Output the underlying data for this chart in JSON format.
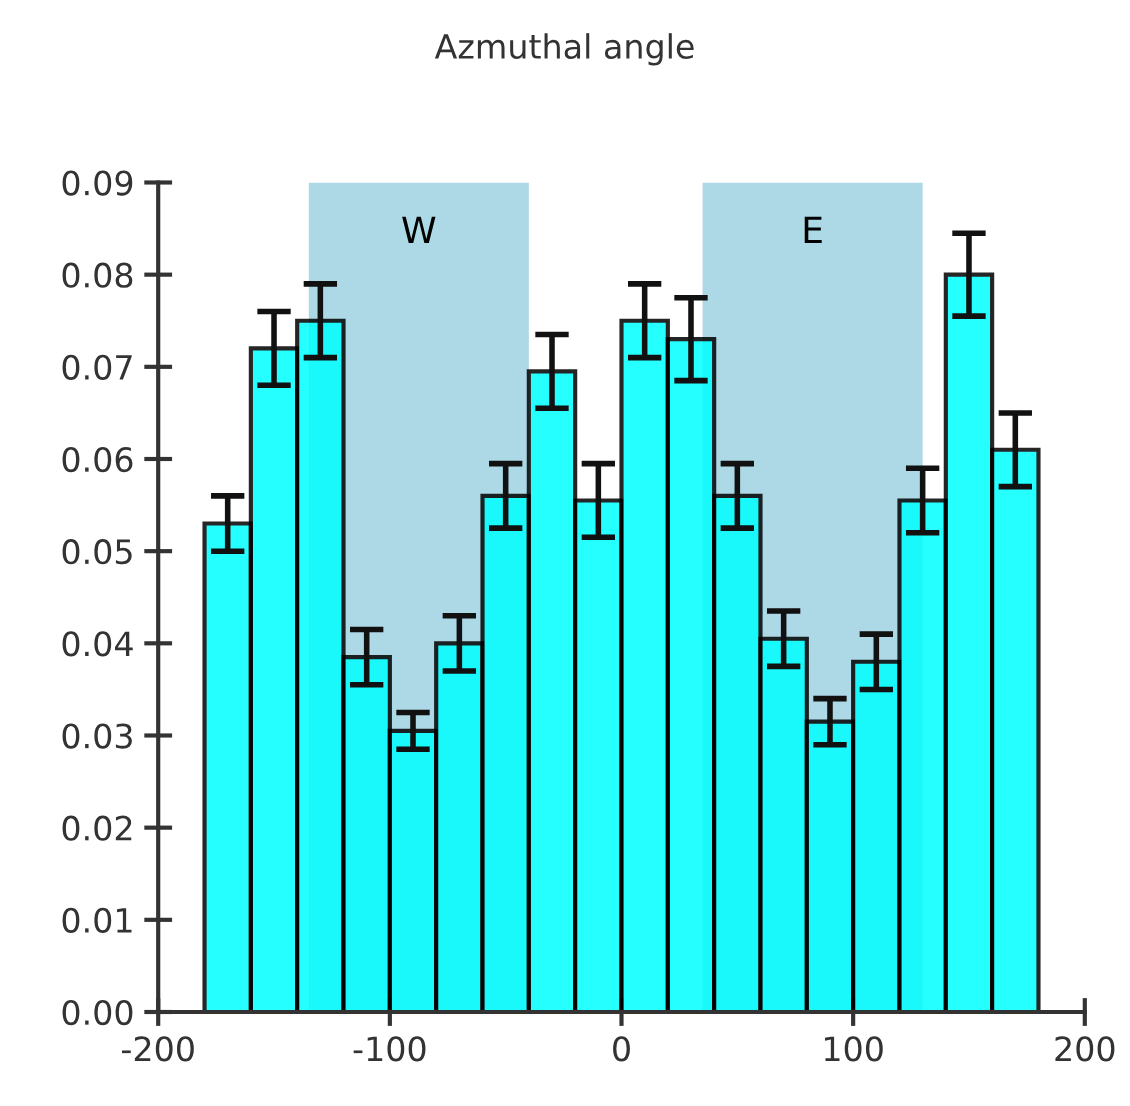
{
  "chart_data": {
    "type": "histogram",
    "title": "Azmuthal angle",
    "bins": [
      -180,
      -160,
      -140,
      -120,
      -100,
      -80,
      -60,
      -40,
      -20,
      0,
      20,
      40,
      60,
      80,
      100,
      120,
      140,
      160,
      180
    ],
    "values": [
      0.053,
      0.072,
      0.075,
      0.0385,
      0.0305,
      0.04,
      0.056,
      0.0695,
      0.0555,
      0.075,
      0.073,
      0.056,
      0.0405,
      0.0315,
      0.038,
      0.0555,
      0.08,
      0.061
    ],
    "errors": [
      0.003,
      0.004,
      0.004,
      0.003,
      0.002,
      0.003,
      0.0035,
      0.004,
      0.004,
      0.004,
      0.0045,
      0.0035,
      0.003,
      0.0025,
      0.003,
      0.0035,
      0.0045,
      0.004
    ],
    "color": "#00ffff",
    "bands": [
      {
        "axis": "x",
        "from": -135,
        "to": -40,
        "label": "W",
        "color": "#add8e6"
      },
      {
        "axis": "x",
        "from": 35,
        "to": 130,
        "label": "E",
        "color": "#add8e6"
      }
    ],
    "xlim": [
      -200,
      200
    ],
    "xticks": [
      -200,
      -100,
      0,
      100,
      200
    ],
    "ylim": [
      0,
      0.09
    ],
    "yticks": [
      {
        "value": 0,
        "label": "0.00"
      },
      {
        "value": 0.01,
        "label": "0.01"
      },
      {
        "value": 0.02,
        "label": "0.02"
      },
      {
        "value": 0.03,
        "label": "0.03"
      },
      {
        "value": 0.04,
        "label": "0.04"
      },
      {
        "value": 0.05,
        "label": "0.05"
      },
      {
        "value": 0.06,
        "label": "0.06"
      },
      {
        "value": 0.07,
        "label": "0.07"
      },
      {
        "value": 0.08,
        "label": "0.08"
      },
      {
        "value": 0.09,
        "label": "0.09"
      }
    ],
    "grid": false,
    "legend": false
  }
}
